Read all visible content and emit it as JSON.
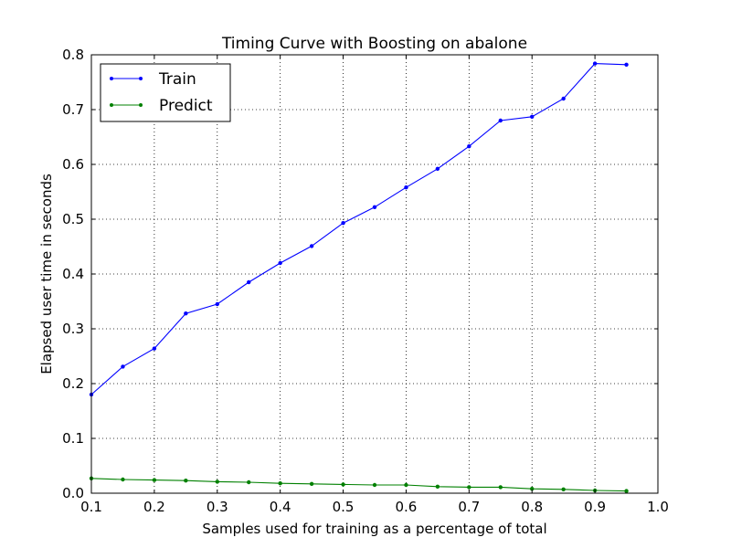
{
  "chart_data": {
    "type": "line",
    "title": "Timing Curve with Boosting on abalone",
    "xlabel": "Samples used for training as a percentage of total",
    "ylabel": "Elapsed user time in seconds",
    "xlim": [
      0.1,
      1.0
    ],
    "ylim": [
      0.0,
      0.8
    ],
    "xticks": [
      0.1,
      0.2,
      0.3,
      0.4,
      0.5,
      0.6,
      0.7,
      0.8,
      0.9,
      1.0
    ],
    "xtick_labels": [
      "0.1",
      "0.2",
      "0.3",
      "0.4",
      "0.5",
      "0.6",
      "0.7",
      "0.8",
      "0.9",
      "1.0"
    ],
    "yticks": [
      0.0,
      0.1,
      0.2,
      0.3,
      0.4,
      0.5,
      0.6,
      0.7,
      0.8
    ],
    "ytick_labels": [
      "0.0",
      "0.1",
      "0.2",
      "0.3",
      "0.4",
      "0.5",
      "0.6",
      "0.7",
      "0.8"
    ],
    "grid": true,
    "legend_position": "top-left",
    "x": [
      0.1,
      0.15,
      0.2,
      0.25,
      0.3,
      0.35,
      0.4,
      0.45,
      0.5,
      0.55,
      0.6,
      0.65,
      0.7,
      0.75,
      0.8,
      0.85,
      0.9,
      0.95
    ],
    "series": [
      {
        "name": "Train",
        "color": "#0000ff",
        "values": [
          0.18,
          0.231,
          0.264,
          0.328,
          0.345,
          0.385,
          0.42,
          0.451,
          0.493,
          0.522,
          0.558,
          0.592,
          0.633,
          0.68,
          0.687,
          0.72,
          0.784,
          0.782
        ]
      },
      {
        "name": "Predict",
        "color": "#008000",
        "values": [
          0.027,
          0.025,
          0.024,
          0.023,
          0.021,
          0.02,
          0.018,
          0.017,
          0.016,
          0.015,
          0.015,
          0.012,
          0.011,
          0.011,
          0.008,
          0.007,
          0.005,
          0.004
        ]
      }
    ]
  }
}
